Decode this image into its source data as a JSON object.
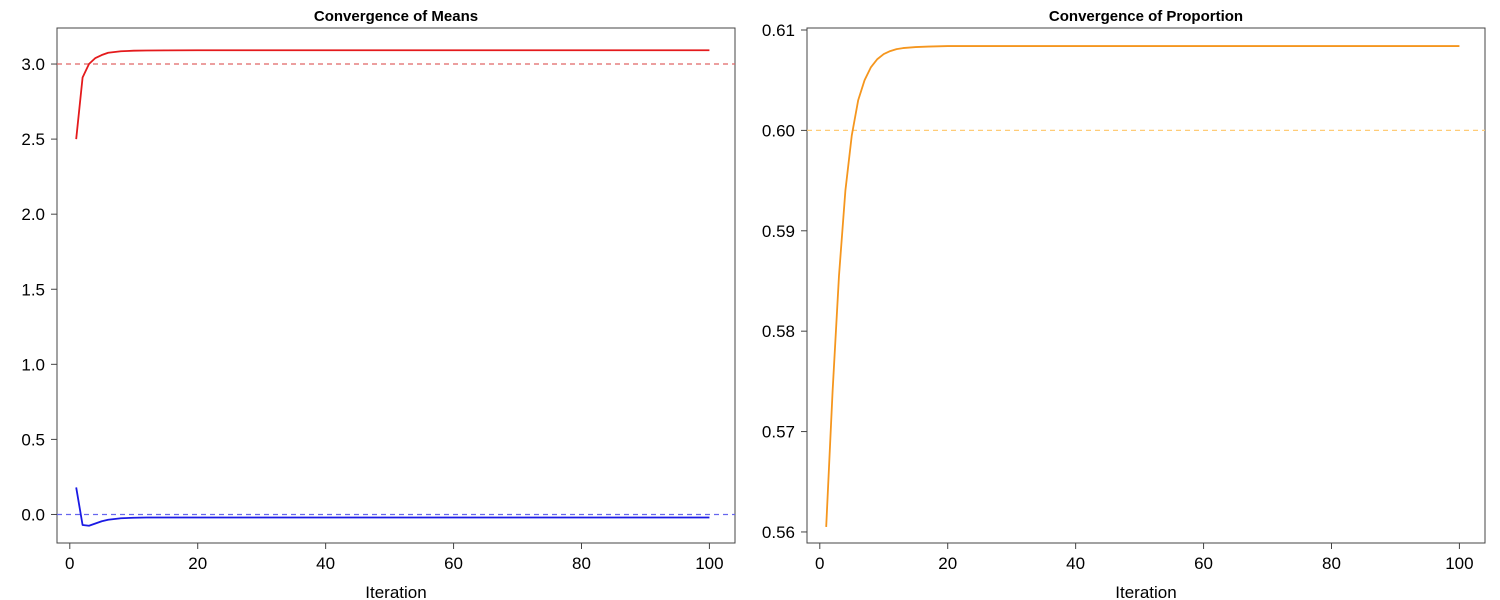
{
  "chart_data": [
    {
      "type": "line",
      "title": "Convergence of Means",
      "xlabel": "Iteration",
      "ylabel": "",
      "xlim": [
        -2,
        104
      ],
      "ylim": [
        -0.19,
        3.24
      ],
      "xticks": [
        0,
        20,
        40,
        60,
        80,
        100
      ],
      "yticks": [
        0.0,
        0.5,
        1.0,
        1.5,
        2.0,
        2.5,
        3.0
      ],
      "ytick_labels": [
        "0.0",
        "0.5",
        "1.0",
        "1.5",
        "2.0",
        "2.5",
        "3.0"
      ],
      "grid": false,
      "legend": "none",
      "reference_lines": [
        {
          "y": 3.0,
          "color": "#e06666",
          "style": "dashed"
        },
        {
          "y": 0.0,
          "color": "#6666ee",
          "style": "dashed"
        }
      ],
      "series": [
        {
          "color": "#e41a1c",
          "x": [
            1,
            2,
            3,
            4,
            5,
            6,
            7,
            8,
            9,
            10,
            12,
            15,
            20,
            30,
            50,
            100
          ],
          "y": [
            2.5,
            2.91,
            3.0,
            3.04,
            3.06,
            3.075,
            3.08,
            3.085,
            3.087,
            3.089,
            3.09,
            3.091,
            3.092,
            3.092,
            3.092,
            3.092
          ]
        },
        {
          "color": "#1a1ae4",
          "x": [
            1,
            2,
            3,
            4,
            5,
            6,
            7,
            8,
            10,
            12,
            15,
            20,
            30,
            50,
            100
          ],
          "y": [
            0.18,
            -0.07,
            -0.075,
            -0.06,
            -0.045,
            -0.035,
            -0.03,
            -0.025,
            -0.022,
            -0.02,
            -0.02,
            -0.02,
            -0.02,
            -0.02,
            -0.02
          ]
        }
      ]
    },
    {
      "type": "line",
      "title": "Convergence of Proportion",
      "xlabel": "Iteration",
      "ylabel": "",
      "xlim": [
        -2,
        104
      ],
      "ylim": [
        0.5589,
        0.6102
      ],
      "xticks": [
        0,
        20,
        40,
        60,
        80,
        100
      ],
      "yticks": [
        0.56,
        0.57,
        0.58,
        0.59,
        0.6,
        0.61
      ],
      "ytick_labels": [
        "0.56",
        "0.57",
        "0.58",
        "0.59",
        "0.60",
        "0.61"
      ],
      "grid": false,
      "legend": "none",
      "reference_lines": [
        {
          "y": 0.6,
          "color": "#ffcc77",
          "style": "dashed"
        }
      ],
      "series": [
        {
          "color": "#f5961e",
          "x": [
            1,
            2,
            3,
            4,
            5,
            6,
            7,
            8,
            9,
            10,
            11,
            12,
            13,
            15,
            17,
            20,
            25,
            30,
            50,
            100
          ],
          "y": [
            0.5605,
            0.574,
            0.5855,
            0.594,
            0.5995,
            0.603,
            0.605,
            0.6063,
            0.6071,
            0.6076,
            0.6079,
            0.6081,
            0.6082,
            0.6083,
            0.60835,
            0.6084,
            0.6084,
            0.6084,
            0.6084,
            0.6084
          ]
        }
      ]
    }
  ]
}
